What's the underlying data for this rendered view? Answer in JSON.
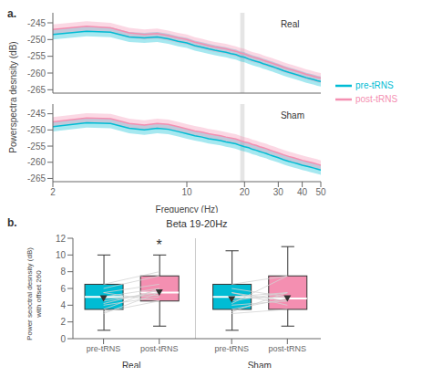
{
  "chart_data": [
    {
      "type": "line",
      "panel_label": "a.",
      "ylabel": "Powerspectra desnsity (dB)",
      "legend": "right",
      "log": "x",
      "grid": false,
      "tick_labels": "y",
      "xlim": [
        2,
        50
      ],
      "xticks": [
        2,
        10,
        20,
        30,
        40,
        50
      ],
      "ylim": [
        -266,
        -242
      ],
      "yticks": [
        -265,
        -260,
        -255,
        -250,
        -245
      ],
      "annotations": [
        {
          "text": "Real"
        }
      ],
      "spans": [
        {
          "x": [
            19,
            20
          ],
          "color": "#CCCCCC"
        }
      ],
      "x": [
        2,
        3,
        4,
        5,
        6,
        7,
        8,
        9,
        10,
        11,
        12,
        13,
        14,
        15,
        16,
        17,
        18,
        19,
        20,
        21,
        22,
        23,
        24,
        25,
        26,
        27,
        28,
        29,
        30,
        32,
        34,
        36,
        38,
        40,
        42,
        44,
        46,
        48,
        50
      ],
      "series": [
        {
          "name": "pre-tRNS",
          "color": "#00BCD4",
          "values": [
            -248.5,
            -247.5,
            -247.8,
            -249.2,
            -249.5,
            -249.2,
            -249.8,
            -250.5,
            -251.0,
            -251.8,
            -252.3,
            -252.8,
            -253.2,
            -253.5,
            -253.8,
            -254.2,
            -254.5,
            -255.0,
            -255.3,
            -255.8,
            -256.2,
            -256.5,
            -256.8,
            -257.2,
            -257.5,
            -257.8,
            -258.1,
            -258.4,
            -258.7,
            -259.3,
            -259.8,
            -260.2,
            -260.6,
            -261.0,
            -261.4,
            -261.7,
            -262.0,
            -262.3,
            -262.5
          ],
          "upper": [
            -247.0,
            -246.0,
            -246.3,
            -247.7,
            -248.0,
            -247.7,
            -248.3,
            -249.0,
            -249.5,
            -250.3,
            -250.8,
            -251.3,
            -251.7,
            -252.0,
            -252.3,
            -252.7,
            -253.0,
            -253.5,
            -253.8,
            -254.3,
            -254.7,
            -255.0,
            -255.3,
            -255.7,
            -256.0,
            -256.3,
            -256.6,
            -256.9,
            -257.2,
            -257.8,
            -258.3,
            -258.7,
            -259.1,
            -259.5,
            -259.9,
            -260.2,
            -260.5,
            -260.8,
            -261.0
          ],
          "lower": [
            -250.0,
            -249.0,
            -249.3,
            -250.7,
            -251.0,
            -250.7,
            -251.3,
            -252.0,
            -252.5,
            -253.3,
            -253.8,
            -254.3,
            -254.7,
            -255.0,
            -255.3,
            -255.7,
            -256.0,
            -256.5,
            -256.8,
            -257.3,
            -257.7,
            -258.0,
            -258.3,
            -258.7,
            -259.0,
            -259.3,
            -259.6,
            -259.9,
            -260.2,
            -260.8,
            -261.3,
            -261.7,
            -262.1,
            -262.5,
            -262.9,
            -263.2,
            -263.5,
            -263.8,
            -264.0
          ]
        },
        {
          "name": "post-tRNS",
          "color": "#F48FB1",
          "values": [
            -247.0,
            -246.0,
            -246.5,
            -248.0,
            -248.5,
            -248.2,
            -248.8,
            -249.5,
            -250.0,
            -250.8,
            -251.3,
            -251.8,
            -252.2,
            -252.5,
            -252.8,
            -253.2,
            -253.5,
            -254.0,
            -254.3,
            -254.8,
            -255.2,
            -255.5,
            -255.8,
            -256.2,
            -256.5,
            -256.8,
            -257.1,
            -257.4,
            -257.7,
            -258.3,
            -258.8,
            -259.2,
            -259.6,
            -260.0,
            -260.4,
            -260.7,
            -261.0,
            -261.3,
            -261.5
          ],
          "upper": [
            -245.5,
            -244.5,
            -245.0,
            -246.5,
            -247.0,
            -246.7,
            -247.3,
            -248.0,
            -248.5,
            -249.3,
            -249.8,
            -250.3,
            -250.7,
            -251.0,
            -251.3,
            -251.7,
            -252.0,
            -252.5,
            -252.8,
            -253.3,
            -253.7,
            -254.0,
            -254.3,
            -254.7,
            -255.0,
            -255.3,
            -255.6,
            -255.9,
            -256.2,
            -256.8,
            -257.3,
            -257.7,
            -258.1,
            -258.5,
            -258.9,
            -259.2,
            -259.5,
            -259.8,
            -260.0
          ],
          "lower": [
            -248.5,
            -247.5,
            -248.0,
            -249.5,
            -250.0,
            -249.7,
            -250.3,
            -251.0,
            -251.5,
            -252.3,
            -252.8,
            -253.3,
            -253.7,
            -254.0,
            -254.3,
            -254.7,
            -255.0,
            -255.5,
            -255.8,
            -256.3,
            -256.7,
            -257.0,
            -257.3,
            -257.7,
            -258.0,
            -258.3,
            -258.6,
            -258.9,
            -259.2,
            -259.8,
            -260.3,
            -260.7,
            -261.1,
            -261.5,
            -261.9,
            -262.2,
            -262.5,
            -262.8,
            -263.0
          ]
        }
      ]
    },
    {
      "type": "line",
      "xlabel": "Frequency (Hz)",
      "log": "x",
      "grid": false,
      "xlim": [
        2,
        50
      ],
      "xticks": [
        2,
        10,
        20,
        30,
        40,
        50
      ],
      "ylim": [
        -266,
        -242
      ],
      "yticks": [
        -265,
        -260,
        -255,
        -250,
        -245
      ],
      "annotations": [
        {
          "text": "Sham"
        }
      ],
      "spans": [
        {
          "x": [
            19,
            20
          ],
          "color": "#CCCCCC"
        }
      ],
      "x": [
        2,
        3,
        4,
        5,
        6,
        7,
        8,
        9,
        10,
        11,
        12,
        13,
        14,
        15,
        16,
        17,
        18,
        19,
        20,
        21,
        22,
        23,
        24,
        25,
        26,
        27,
        28,
        29,
        30,
        32,
        34,
        36,
        38,
        40,
        42,
        44,
        46,
        48,
        50
      ],
      "series": [
        {
          "name": "pre-tRNS",
          "color": "#00BCD4",
          "values": [
            -249.0,
            -247.8,
            -248.0,
            -249.5,
            -250.0,
            -249.5,
            -249.8,
            -250.5,
            -251.2,
            -251.8,
            -252.2,
            -252.7,
            -253.0,
            -253.3,
            -253.7,
            -254.0,
            -254.3,
            -254.8,
            -255.2,
            -255.5,
            -256.0,
            -256.3,
            -256.7,
            -257.0,
            -257.3,
            -257.7,
            -258.0,
            -258.3,
            -258.6,
            -259.2,
            -259.7,
            -260.1,
            -260.5,
            -260.9,
            -261.2,
            -261.5,
            -261.8,
            -262.1,
            -262.4
          ],
          "upper": [
            -247.5,
            -246.3,
            -246.5,
            -248.0,
            -248.5,
            -248.0,
            -248.3,
            -249.0,
            -249.7,
            -250.3,
            -250.7,
            -251.2,
            -251.5,
            -251.8,
            -252.2,
            -252.5,
            -252.8,
            -253.3,
            -253.7,
            -254.0,
            -254.5,
            -254.8,
            -255.2,
            -255.5,
            -255.8,
            -256.2,
            -256.5,
            -256.8,
            -257.1,
            -257.7,
            -258.2,
            -258.6,
            -259.0,
            -259.4,
            -259.7,
            -260.0,
            -260.3,
            -260.6,
            -260.9
          ],
          "lower": [
            -250.5,
            -249.3,
            -249.5,
            -251.0,
            -251.5,
            -251.0,
            -251.3,
            -252.0,
            -252.7,
            -253.3,
            -253.7,
            -254.2,
            -254.5,
            -254.8,
            -255.2,
            -255.5,
            -255.8,
            -256.3,
            -256.7,
            -257.0,
            -257.5,
            -257.8,
            -258.2,
            -258.5,
            -258.8,
            -259.2,
            -259.5,
            -259.8,
            -260.1,
            -260.7,
            -261.2,
            -261.6,
            -262.0,
            -262.4,
            -262.7,
            -263.0,
            -263.3,
            -263.6,
            -263.9
          ]
        },
        {
          "name": "post-tRNS",
          "color": "#F48FB1",
          "values": [
            -247.5,
            -246.3,
            -246.5,
            -248.0,
            -248.5,
            -248.0,
            -248.3,
            -249.0,
            -249.7,
            -250.3,
            -250.7,
            -251.2,
            -251.5,
            -251.8,
            -252.2,
            -252.5,
            -252.8,
            -253.3,
            -253.7,
            -254.0,
            -254.5,
            -254.8,
            -255.2,
            -255.5,
            -255.8,
            -256.2,
            -256.5,
            -256.8,
            -257.1,
            -257.7,
            -258.2,
            -258.6,
            -259.0,
            -259.4,
            -259.7,
            -260.0,
            -260.3,
            -260.6,
            -260.9
          ],
          "upper": [
            -246.0,
            -244.8,
            -245.0,
            -246.5,
            -247.0,
            -246.5,
            -246.8,
            -247.5,
            -248.2,
            -248.8,
            -249.2,
            -249.7,
            -250.0,
            -250.3,
            -250.7,
            -251.0,
            -251.3,
            -251.8,
            -252.2,
            -252.5,
            -253.0,
            -253.3,
            -253.7,
            -254.0,
            -254.3,
            -254.7,
            -255.0,
            -255.3,
            -255.6,
            -256.2,
            -256.7,
            -257.1,
            -257.5,
            -257.9,
            -258.2,
            -258.5,
            -258.8,
            -259.1,
            -259.4
          ],
          "lower": [
            -249.0,
            -247.8,
            -248.0,
            -249.5,
            -250.0,
            -249.5,
            -249.8,
            -250.5,
            -251.2,
            -251.8,
            -252.2,
            -252.7,
            -253.0,
            -253.3,
            -253.7,
            -254.0,
            -254.3,
            -254.8,
            -255.2,
            -255.5,
            -256.0,
            -256.3,
            -256.7,
            -257.0,
            -257.3,
            -257.7,
            -258.0,
            -258.3,
            -258.6,
            -259.2,
            -259.7,
            -260.1,
            -260.5,
            -260.9,
            -261.2,
            -261.5,
            -261.8,
            -262.1,
            -262.4
          ]
        }
      ]
    },
    {
      "type": "box",
      "panel_label": "b.",
      "title": "Beta 19-20Hz",
      "ylabel": "Power seoctral desnsity (dB)\nwith offset 260",
      "grid": false,
      "marker": "triangle-down",
      "ylim": [
        0,
        12
      ],
      "yticks": [
        0,
        2,
        4,
        6,
        8,
        10,
        12
      ],
      "categories": [
        "pre-tRNS",
        "post-tRNS",
        "pre-tRNS",
        "post-tRNS"
      ],
      "groups": [
        "Real",
        "Sham"
      ],
      "colors": [
        "#00BCD4",
        "#F48FB1",
        "#00BCD4",
        "#F48FB1"
      ],
      "boxes": [
        {
          "q1": 3.5,
          "median": 5.0,
          "q3": 6.5,
          "whisker_low": 1.0,
          "whisker_high": 10.0,
          "mean": 4.8
        },
        {
          "q1": 4.5,
          "median": 5.5,
          "q3": 7.5,
          "whisker_low": 1.5,
          "whisker_high": 10.0,
          "mean": 5.5
        },
        {
          "q1": 3.5,
          "median": 5.0,
          "q3": 6.5,
          "whisker_low": 1.0,
          "whisker_high": 10.5,
          "mean": 4.7
        },
        {
          "q1": 3.5,
          "median": 4.8,
          "q3": 7.5,
          "whisker_low": 1.5,
          "whisker_high": 11.0,
          "mean": 4.8
        }
      ],
      "pairs": [
        {
          "group": "Real",
          "color": "#D3D3D3",
          "values": [
            [
              3.5,
              6.0
            ],
            [
              4.5,
              5.5
            ],
            [
              6.0,
              7.5
            ],
            [
              5.5,
              4.5
            ],
            [
              4.0,
              5.0
            ],
            [
              5.5,
              6.5
            ],
            [
              6.5,
              8.0
            ],
            [
              3.0,
              5.5
            ],
            [
              4.8,
              5.2
            ],
            [
              5.0,
              6.0
            ],
            [
              3.2,
              4.5
            ],
            [
              4.2,
              5.8
            ]
          ]
        },
        {
          "group": "Sham",
          "color": "#D3D3D3",
          "values": [
            [
              5.0,
              5.5
            ],
            [
              4.0,
              4.5
            ],
            [
              6.5,
              7.5
            ],
            [
              5.5,
              4.0
            ],
            [
              3.5,
              4.8
            ],
            [
              4.5,
              5.5
            ],
            [
              6.0,
              5.0
            ],
            [
              3.0,
              3.5
            ],
            [
              5.5,
              4.5
            ],
            [
              4.8,
              5.0
            ],
            [
              3.2,
              5.5
            ],
            [
              4.2,
              7.5
            ]
          ]
        }
      ],
      "annotations": [
        {
          "text": "*",
          "group": "Real",
          "y": 11.2
        }
      ]
    }
  ]
}
